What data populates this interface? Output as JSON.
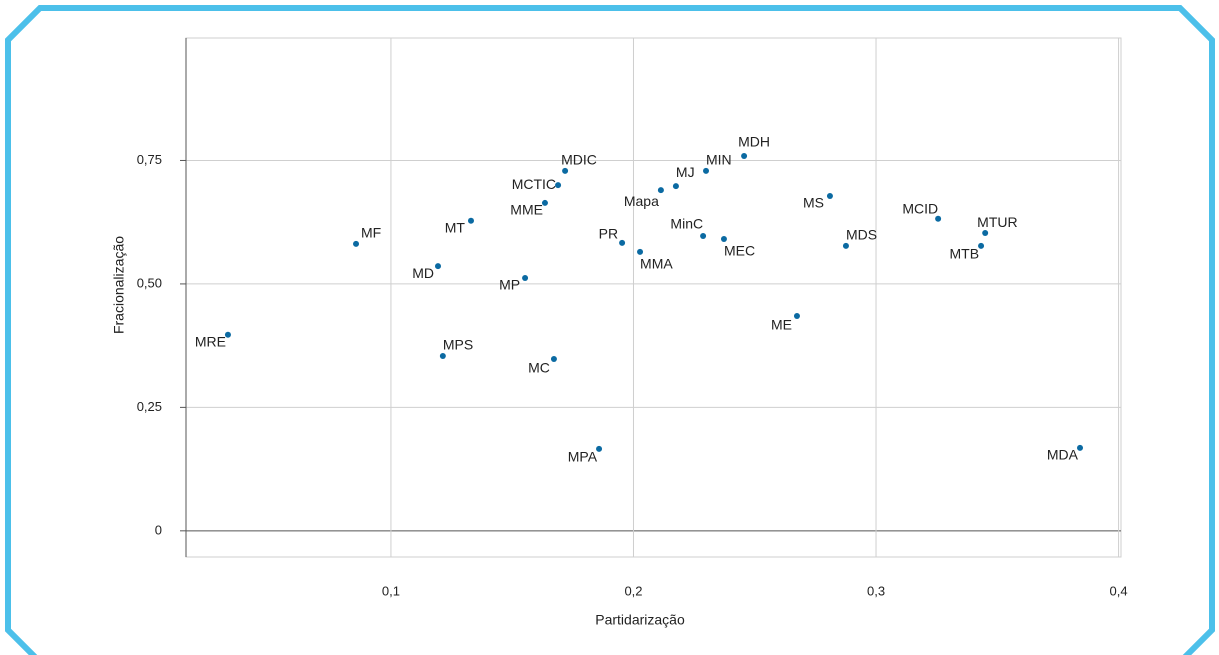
{
  "chart_data": {
    "type": "scatter",
    "x_label": "Partidarização",
    "y_label": "Fracionalização",
    "color": "#0b6aa2",
    "xlim": [
      0.0155,
      0.401
    ],
    "ylim": [
      -0.053,
      0.998
    ],
    "xticks": [
      {
        "value": 0.1,
        "label": "0,1"
      },
      {
        "value": 0.2,
        "label": "0,2"
      },
      {
        "value": 0.3,
        "label": "0,3"
      },
      {
        "value": 0.4,
        "label": "0,4"
      }
    ],
    "yticks": [
      0,
      {
        "value": 0.25,
        "label": "0,25"
      },
      {
        "value": 0.5,
        "label": "0,50"
      },
      {
        "value": 0.75,
        "label": "0,75"
      }
    ],
    "grid": true,
    "labels": [
      "MRE",
      "MF",
      "MD",
      "MT",
      "MPS",
      "MP",
      "MC",
      "MME",
      "MCTIC",
      "MDIC",
      "PR",
      "MMA",
      "Mapa",
      "MJ",
      "MIN",
      "MDH",
      "MinC",
      "MEC",
      "MPA",
      "ME",
      "MS",
      "MDS",
      "MCID",
      "MTUR",
      "MTB",
      "MDA"
    ],
    "x": [
      0.0328,
      0.0856,
      0.1194,
      0.133,
      0.1214,
      0.1553,
      0.1672,
      0.1635,
      0.1689,
      0.1718,
      0.1953,
      0.2027,
      0.2113,
      0.2175,
      0.2299,
      0.2456,
      0.2287,
      0.2373,
      0.1858,
      0.2674,
      0.281,
      0.2876,
      0.3256,
      0.345,
      0.3433,
      0.3841
    ],
    "y": [
      0.397,
      0.581,
      0.536,
      0.628,
      0.354,
      0.512,
      0.348,
      0.664,
      0.7,
      0.729,
      0.583,
      0.565,
      0.69,
      0.698,
      0.729,
      0.759,
      0.597,
      0.591,
      0.166,
      0.435,
      0.678,
      0.577,
      0.632,
      0.603,
      0.577,
      0.168
    ]
  }
}
